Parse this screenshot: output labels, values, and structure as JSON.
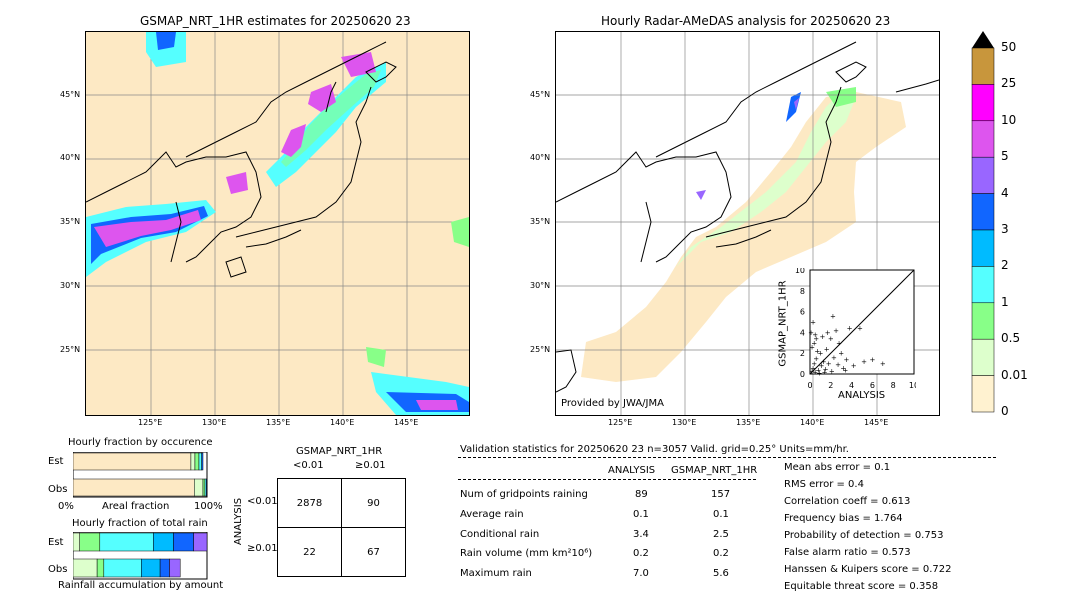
{
  "left_map": {
    "title": "GSMAP_NRT_1HR estimates for 20250620 23",
    "lat_labels": [
      "45°N",
      "40°N",
      "35°N",
      "30°N",
      "25°N"
    ],
    "lon_labels": [
      "125°E",
      "130°E",
      "135°E",
      "140°E",
      "145°E"
    ]
  },
  "right_map": {
    "title": "Hourly Radar-AMeDAS analysis for 20250620 23",
    "lat_labels": [
      "45°N",
      "40°N",
      "35°N",
      "30°N",
      "25°N"
    ],
    "lon_labels": [
      "125°E",
      "130°E",
      "135°E",
      "140°E",
      "145°E"
    ],
    "credit": "Provided by JWA/JMA"
  },
  "colorbar": {
    "labels": [
      "50",
      "25",
      "10",
      "5",
      "4",
      "3",
      "2",
      "1",
      "0.5",
      "0.01",
      "0"
    ],
    "colors": [
      "#c8963c",
      "#ff00ff",
      "#dd55ee",
      "#9966ff",
      "#1166ff",
      "#00bbff",
      "#55ffff",
      "#88ff88",
      "#ddffcc",
      "#fff2d0"
    ]
  },
  "occurrence": {
    "title": "Hourly fraction by occurence",
    "est_label": "Est",
    "obs_label": "Obs",
    "x_left": "0%",
    "x_mid": "Areal fraction",
    "x_right": "100%"
  },
  "accumulation": {
    "title": "Hourly fraction of total rain",
    "est_label": "Est",
    "obs_label": "Obs",
    "xlabel": "Rainfall accumulation by amount"
  },
  "contingency": {
    "title": "GSMAP_NRT_1HR",
    "col_lt": "<0.01",
    "col_ge": "≥0.01",
    "row_axis": "ANALYSIS",
    "row_lt": "<0.01",
    "row_ge": "≥0.01",
    "cells": [
      "2878",
      "90",
      "22",
      "67"
    ]
  },
  "validation": {
    "header": "Validation statistics for 20250620 23  n=3057 Valid. grid=0.25° Units=mm/hr.",
    "col_analysis": "ANALYSIS",
    "col_gsmap": "GSMAP_NRT_1HR",
    "rows": [
      {
        "label": "Num of gridpoints raining",
        "analysis": "89",
        "gsmap": "157"
      },
      {
        "label": "Average rain",
        "analysis": "0.1",
        "gsmap": "0.1"
      },
      {
        "label": "Conditional rain",
        "analysis": "3.4",
        "gsmap": "2.5"
      },
      {
        "label": "Rain volume (mm km²10⁶)",
        "analysis": "0.2",
        "gsmap": "0.2"
      },
      {
        "label": "Maximum rain",
        "analysis": "7.0",
        "gsmap": "5.6"
      }
    ],
    "scores": [
      "Mean abs error =    0.1",
      "RMS error =    0.4",
      "Correlation coeff =  0.613",
      "Frequency bias =  1.764",
      "Probability of detection =  0.753",
      "False alarm ratio =  0.573",
      "Hanssen & Kuipers score =  0.722",
      "Equitable threat score =  0.358"
    ]
  },
  "chart_data": [
    {
      "type": "scatter",
      "xlabel": "ANALYSIS",
      "ylabel": "GSMAP_NRT_1HR",
      "xlim": [
        0,
        10
      ],
      "ylim": [
        0,
        10
      ],
      "ticks": [
        "0",
        "2",
        "4",
        "6",
        "8",
        "10"
      ],
      "points": [
        [
          0.2,
          0.3
        ],
        [
          0.3,
          0.6
        ],
        [
          0.4,
          1.0
        ],
        [
          0.5,
          0.2
        ],
        [
          0.6,
          1.5
        ],
        [
          0.8,
          0.4
        ],
        [
          1.0,
          2.0
        ],
        [
          1.1,
          0.8
        ],
        [
          1.2,
          3.6
        ],
        [
          1.3,
          1.2
        ],
        [
          1.5,
          0.5
        ],
        [
          1.6,
          2.4
        ],
        [
          1.8,
          1.0
        ],
        [
          2.0,
          3.4
        ],
        [
          2.1,
          0.3
        ],
        [
          2.3,
          1.6
        ],
        [
          2.5,
          4.2
        ],
        [
          2.7,
          0.9
        ],
        [
          3.0,
          2.0
        ],
        [
          3.2,
          0.6
        ],
        [
          3.5,
          1.4
        ],
        [
          3.8,
          4.4
        ],
        [
          4.2,
          0.8
        ],
        [
          4.8,
          4.4
        ],
        [
          5.2,
          1.2
        ],
        [
          0.1,
          4.0
        ],
        [
          0.2,
          2.6
        ],
        [
          0.4,
          3.0
        ],
        [
          0.6,
          3.4
        ],
        [
          0.7,
          2.2
        ],
        [
          0.9,
          0.1
        ],
        [
          1.4,
          0.2
        ],
        [
          0.3,
          5.0
        ],
        [
          7.0,
          1.0
        ],
        [
          6.0,
          1.4
        ],
        [
          2.2,
          5.6
        ],
        [
          1.7,
          4.0
        ],
        [
          0.5,
          3.8
        ],
        [
          3.4,
          0.4
        ],
        [
          2.8,
          3.0
        ]
      ]
    },
    {
      "type": "bar",
      "title": "Hourly fraction by occurence",
      "categories": [
        "Est",
        "Obs"
      ],
      "series": [
        {
          "values": [
            0.88,
            0.905
          ]
        },
        {
          "values": [
            0.03,
            0.065
          ]
        },
        {
          "values": [
            0.03,
            0.015
          ]
        },
        {
          "values": [
            0.02,
            0.01
          ]
        },
        {
          "values": [
            0.01,
            0.005
          ]
        }
      ]
    },
    {
      "type": "bar",
      "title": "Hourly fraction of total rain",
      "categories": [
        "Est",
        "Obs"
      ],
      "series": [
        {
          "values": [
            0.05,
            0.18
          ]
        },
        {
          "values": [
            0.15,
            0.05
          ]
        },
        {
          "values": [
            0.4,
            0.28
          ]
        },
        {
          "values": [
            0.15,
            0.14
          ]
        },
        {
          "values": [
            0.15,
            0.07
          ]
        },
        {
          "values": [
            0.1,
            0.08
          ]
        }
      ]
    }
  ]
}
